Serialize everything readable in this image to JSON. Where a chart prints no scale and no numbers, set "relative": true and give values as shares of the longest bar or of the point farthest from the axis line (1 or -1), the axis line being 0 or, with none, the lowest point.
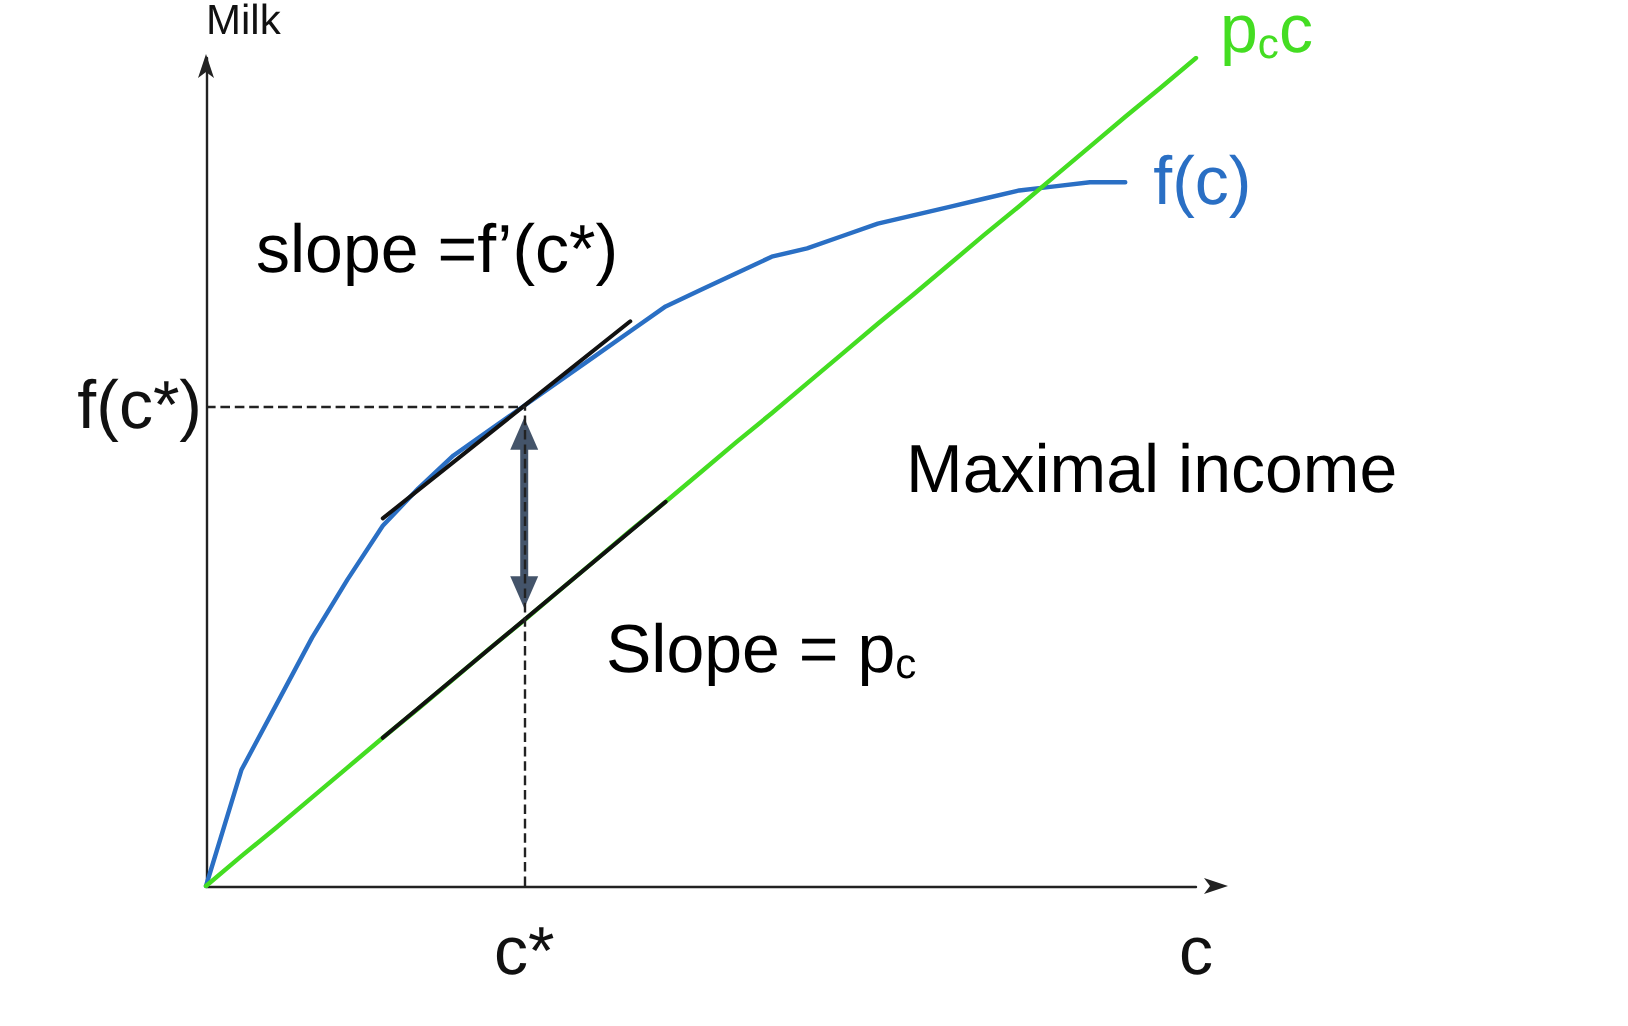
{
  "chart_data": {
    "type": "line",
    "relative": true,
    "ylabel": "Milk",
    "categories": [
      null,
      null,
      null,
      null,
      null,
      null,
      null,
      null,
      null,
      "c*",
      null,
      null,
      null,
      null,
      null,
      null,
      null,
      null,
      null,
      null,
      null,
      null,
      null,
      null,
      null,
      null,
      null,
      null,
      "c"
    ],
    "series": [
      {
        "name": "f(c)",
        "color": "#2a6fc4",
        "values": [
          0,
          0.14,
          0.22,
          0.3,
          0.37,
          0.435,
          0.48,
          0.52,
          0.55,
          0.58,
          0.61,
          0.64,
          0.67,
          0.7,
          0.72,
          0.74,
          0.76,
          0.77,
          0.785,
          0.8,
          0.81,
          0.82,
          0.83,
          0.84,
          0.845,
          0.85,
          0.85,
          null,
          null
        ]
      },
      {
        "name": "p$_{c}$c",
        "color": "#44dd22",
        "values": [
          0,
          0.036,
          0.071,
          0.107,
          0.143,
          0.179,
          0.214,
          0.25,
          0.286,
          0.321,
          0.357,
          0.393,
          0.429,
          0.464,
          0.5,
          0.536,
          0.571,
          0.607,
          0.643,
          0.679,
          0.714,
          0.75,
          0.786,
          0.821,
          0.857,
          0.893,
          0.929,
          0.964,
          1
        ]
      },
      {
        "color": "#111111",
        "values": [
          null,
          null,
          null,
          null,
          null,
          0.444,
          null,
          null,
          null,
          null,
          null,
          null,
          0.682,
          null,
          null,
          null,
          null,
          null,
          null,
          null,
          null,
          null,
          null,
          null,
          null,
          null,
          null,
          null,
          null
        ]
      },
      {
        "color": "#111111",
        "values": [
          null,
          null,
          null,
          null,
          null,
          0.179,
          null,
          null,
          null,
          null,
          null,
          null,
          null,
          0.464,
          null,
          null,
          null,
          null,
          null,
          null,
          null,
          null,
          null,
          null,
          null,
          null,
          null,
          null,
          null
        ]
      }
    ],
    "ref_lines": [
      {
        "axis": "x",
        "value": "c*",
        "label": null,
        "line_style": "dashed",
        "color": "#222222"
      },
      {
        "axis": "y",
        "value": 0.58,
        "label": "f(c*)",
        "line_style": "dashed",
        "color": "#222222"
      }
    ],
    "annotations": [
      "slope =f’(c*)",
      "Slope = p$_{c}$",
      "Maximal income"
    ],
    "legend": false,
    "grid": false,
    "marker": "none",
    "line_style": "solid"
  }
}
